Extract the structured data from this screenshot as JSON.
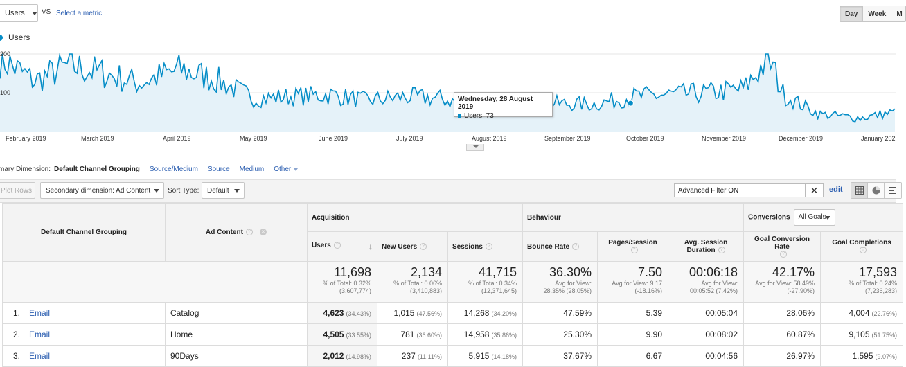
{
  "top_controls": {
    "metric_select": "Users",
    "vs_label": "VS",
    "select_metric_link": "Select a metric",
    "period_buttons": [
      {
        "label": "Day",
        "active": true
      },
      {
        "label": "Week",
        "active": false
      },
      {
        "label": "M",
        "active": false
      }
    ]
  },
  "chart": {
    "legend": "Users",
    "series_color": "#058dc7",
    "y_ticks": [
      {
        "label": "200",
        "value": 200
      },
      {
        "label": "100",
        "value": 100
      }
    ],
    "x_ticks": [
      "February 2019",
      "March 2019",
      "April 2019",
      "May 2019",
      "June 2019",
      "July 2019",
      "August 2019",
      "September 2019",
      "October 2019",
      "November 2019",
      "December 2019",
      "January 202"
    ],
    "tooltip": {
      "date": "Wednesday, 28 August 2019",
      "value_label": "Users: 73"
    },
    "chart_data": {
      "type": "area",
      "series_name": "Users",
      "ylim": [
        0,
        200
      ],
      "x": [
        "2019-01-18",
        "2019-02-01",
        "2019-02-15",
        "2019-03-01",
        "2019-03-15",
        "2019-04-01",
        "2019-04-15",
        "2019-05-01",
        "2019-05-15",
        "2019-06-01",
        "2019-06-15",
        "2019-07-01",
        "2019-07-15",
        "2019-08-01",
        "2019-08-15",
        "2019-08-28",
        "2019-09-15",
        "2019-10-01",
        "2019-10-15",
        "2019-11-01",
        "2019-11-15",
        "2019-11-25",
        "2019-12-01",
        "2019-12-15",
        "2020-01-01",
        "2020-01-15"
      ],
      "values": [
        190,
        130,
        170,
        150,
        125,
        160,
        135,
        85,
        90,
        95,
        80,
        90,
        85,
        60,
        55,
        73,
        70,
        90,
        95,
        100,
        110,
        190,
        95,
        45,
        35,
        50
      ]
    }
  },
  "primary_dimension": {
    "label": "mary Dimension:",
    "selected": "Default Channel Grouping",
    "links": [
      "Source/Medium",
      "Source",
      "Medium"
    ],
    "other": "Other"
  },
  "toolbar": {
    "plot_rows": "Plot Rows",
    "secondary_dimension": "Secondary dimension: Ad Content",
    "sort_type_label": "Sort Type:",
    "sort_type_value": "Default",
    "filter_value": "Advanced Filter ON",
    "edit_label": "edit"
  },
  "table": {
    "col_channel": "Default Channel Grouping",
    "col_ad": "Ad Content",
    "group_acquisition": "Acquisition",
    "group_behaviour": "Behaviour",
    "group_conversions": "Conversions",
    "goals_select": "All Goals",
    "col_users": "Users",
    "col_new_users": "New Users",
    "col_sessions": "Sessions",
    "col_bounce": "Bounce Rate",
    "col_pages_line1": "Pages/Session",
    "col_duration_line1": "Avg. Session",
    "col_duration_line2": "Duration",
    "col_goal_conv": "Goal Conversion Rate",
    "col_goal_comp": "Goal Completions",
    "totals": {
      "users": {
        "value": "11,698",
        "l1": "% of Total: 0.32%",
        "l2": "(3,607,774)"
      },
      "new_users": {
        "value": "2,134",
        "l1": "% of Total: 0.06%",
        "l2": "(3,410,883)"
      },
      "sessions": {
        "value": "41,715",
        "l1": "% of Total: 0.34%",
        "l2": "(12,371,645)"
      },
      "bounce": {
        "value": "36.30%",
        "l1": "Avg for View:",
        "l2": "28.35% (28.05%)"
      },
      "pages": {
        "value": "7.50",
        "l1": "Avg for View: 9.17",
        "l2": "(-18.16%)"
      },
      "duration": {
        "value": "00:06:18",
        "l1": "Avg for View:",
        "l2": "00:05:52 (7.42%)"
      },
      "goal_conv": {
        "value": "42.17%",
        "l1": "Avg for View: 58.49%",
        "l2": "(-27.90%)"
      },
      "goal_comp": {
        "value": "17,593",
        "l1": "% of Total: 0.24%",
        "l2": "(7,236,283)"
      }
    },
    "rows": [
      {
        "idx": "1.",
        "channel": "Email",
        "ad": "Catalog",
        "users": "4,623",
        "users_pct": "(34.43%)",
        "new_users": "1,015",
        "new_users_pct": "(47.56%)",
        "sessions": "14,268",
        "sessions_pct": "(34.20%)",
        "bounce": "47.59%",
        "pages": "5.39",
        "duration": "00:05:04",
        "goal_conv": "28.06%",
        "goal_comp": "4,004",
        "goal_comp_pct": "(22.76%)"
      },
      {
        "idx": "2.",
        "channel": "Email",
        "ad": "Home",
        "users": "4,505",
        "users_pct": "(33.55%)",
        "new_users": "781",
        "new_users_pct": "(36.60%)",
        "sessions": "14,958",
        "sessions_pct": "(35.86%)",
        "bounce": "25.30%",
        "pages": "9.90",
        "duration": "00:08:02",
        "goal_conv": "60.87%",
        "goal_comp": "9,105",
        "goal_comp_pct": "(51.75%)"
      },
      {
        "idx": "3.",
        "channel": "Email",
        "ad": "90Days",
        "users": "2,012",
        "users_pct": "(14.98%)",
        "new_users": "237",
        "new_users_pct": "(11.11%)",
        "sessions": "5,915",
        "sessions_pct": "(14.18%)",
        "bounce": "37.67%",
        "pages": "6.67",
        "duration": "00:04:56",
        "goal_conv": "26.97%",
        "goal_comp": "1,595",
        "goal_comp_pct": "(9.07%)"
      }
    ]
  }
}
